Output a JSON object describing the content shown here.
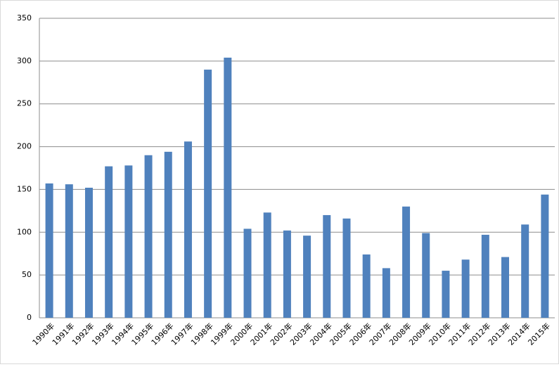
{
  "chart_data": {
    "type": "bar",
    "categories": [
      "1990年",
      "1991年",
      "1992年",
      "1993年",
      "1994年",
      "1995年",
      "1996年",
      "1997年",
      "1998年",
      "1999年",
      "2000年",
      "2001年",
      "2002年",
      "2003年",
      "2004年",
      "2005年",
      "2006年",
      "2007年",
      "2008年",
      "2009年",
      "2010年",
      "2011年",
      "2012年",
      "2013年",
      "2014年",
      "2015年"
    ],
    "values": [
      157,
      156,
      152,
      177,
      178,
      190,
      194,
      206,
      290,
      304,
      104,
      123,
      102,
      96,
      120,
      116,
      74,
      58,
      130,
      99,
      55,
      68,
      97,
      71,
      109,
      144
    ],
    "color": "#4f81bd",
    "ylim": [
      0,
      350
    ],
    "yticks": [
      0,
      50,
      100,
      150,
      200,
      250,
      300,
      350
    ],
    "grid": true
  }
}
